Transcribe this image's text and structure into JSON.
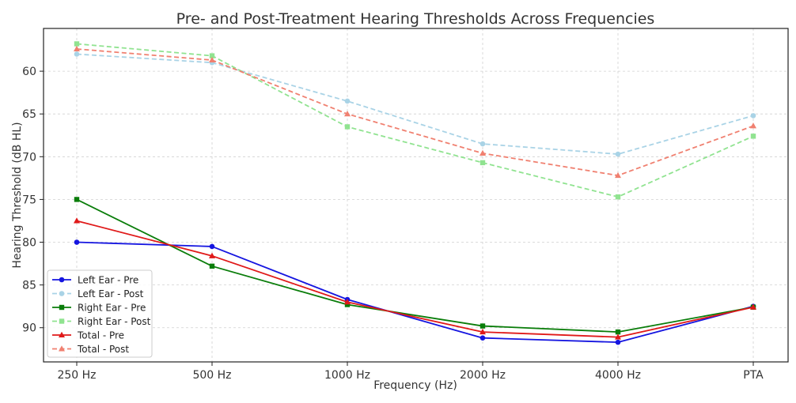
{
  "chart_data": {
    "type": "line",
    "title": "Pre- and Post-Treatment Hearing Thresholds Across Frequencies",
    "xlabel": "Frequency (Hz)",
    "ylabel": "Hearing Threshold (dB HL)",
    "categories": [
      "250 Hz",
      "500 Hz",
      "1000 Hz",
      "2000 Hz",
      "4000 Hz",
      "PTA"
    ],
    "y_inverted": true,
    "ylim": [
      94,
      55
    ],
    "yticks": [
      60,
      65,
      70,
      75,
      80,
      85,
      90
    ],
    "grid": true,
    "legend_position": "lower-left",
    "series": [
      {
        "name": "Left Ear - Pre",
        "values": [
          80,
          80.5,
          86.7,
          91.2,
          91.7,
          87.5
        ],
        "color": "#1515e0",
        "dashed": false,
        "marker": "circle"
      },
      {
        "name": "Left Ear - Post",
        "values": [
          58,
          59,
          63.5,
          68.5,
          69.7,
          65.2
        ],
        "color": "#a9d3e6",
        "dashed": true,
        "marker": "circle"
      },
      {
        "name": "Right Ear - Pre",
        "values": [
          75,
          82.8,
          87.3,
          89.8,
          90.5,
          87.6
        ],
        "color": "#0a7d0a",
        "dashed": false,
        "marker": "square"
      },
      {
        "name": "Right Ear - Post",
        "values": [
          56.8,
          58.2,
          66.5,
          70.7,
          74.7,
          67.6
        ],
        "color": "#90e390",
        "dashed": true,
        "marker": "square"
      },
      {
        "name": "Total - Pre",
        "values": [
          77.5,
          81.6,
          87,
          90.5,
          91.1,
          87.6
        ],
        "color": "#e01919",
        "dashed": false,
        "marker": "triangle"
      },
      {
        "name": "Total - Post",
        "values": [
          57.4,
          58.7,
          65,
          69.6,
          72.2,
          66.4
        ],
        "color": "#f08070",
        "dashed": true,
        "marker": "triangle"
      }
    ]
  }
}
